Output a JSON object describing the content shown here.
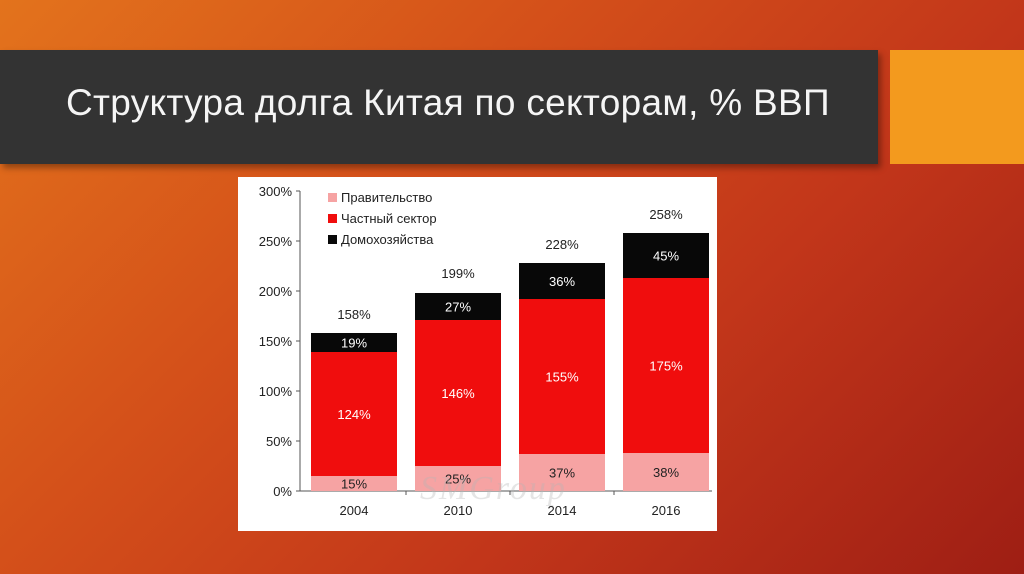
{
  "slide": {
    "title": "Структура долга Китая по секторам, % ВВП",
    "watermark": "SMGroup"
  },
  "colors": {
    "government": "#f6a3a3",
    "private": "#f00d0d",
    "households": "#080808",
    "accent": "#f39a1e",
    "title_bar": "#333333"
  },
  "chart_data": {
    "type": "bar",
    "stacked": true,
    "categories": [
      "2004",
      "2010",
      "2014",
      "2016"
    ],
    "series": [
      {
        "name": "Правительство",
        "values": [
          15,
          25,
          37,
          38
        ],
        "labels": [
          "15%",
          "25%",
          "37%",
          "38%"
        ]
      },
      {
        "name": "Частный сектор",
        "values": [
          124,
          146,
          155,
          175
        ],
        "labels": [
          "124%",
          "146%",
          "155%",
          "175%"
        ]
      },
      {
        "name": "Домохозяйства",
        "values": [
          19,
          27,
          36,
          45
        ],
        "labels": [
          "19%",
          "27%",
          "36%",
          "45%"
        ]
      }
    ],
    "totals": [
      "158%",
      "199%",
      "228%",
      "258%"
    ],
    "total_values": [
      158,
      199,
      228,
      258
    ],
    "yticks": [
      "0%",
      "50%",
      "100%",
      "150%",
      "200%",
      "250%",
      "300%"
    ],
    "ylim": [
      0,
      300
    ],
    "legend_position": "top-left",
    "grid": false
  }
}
